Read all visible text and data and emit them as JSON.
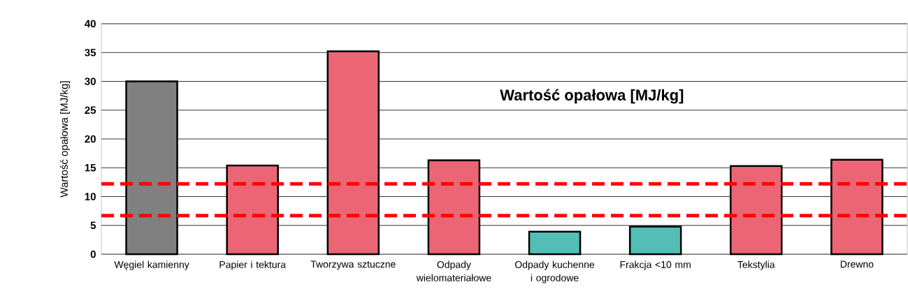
{
  "chart_data": {
    "type": "bar",
    "title": "Wartość opałowa [MJ/kg]",
    "ylabel": "Wartość opałowa [MJ/kg]",
    "categories": [
      "Węgiel kamienny",
      "Papier i tektura",
      "Tworzywa sztuczne",
      "Odpady wielomateriałowe",
      "Odpady kuchenne i ogrodowe",
      "Frakcja <10 mm",
      "Tekstylia",
      "Drewno"
    ],
    "values": [
      30,
      15.4,
      35.2,
      16.3,
      3.9,
      4.8,
      15.3,
      16.4
    ],
    "colors": [
      "#808080",
      "#ec6574",
      "#ec6574",
      "#ec6574",
      "#52beb6",
      "#52beb6",
      "#ec6574",
      "#ec6574"
    ],
    "ylim": [
      0,
      40
    ],
    "yticks": [
      0,
      5,
      10,
      15,
      20,
      25,
      30,
      35,
      40
    ],
    "grid": "y",
    "ref_lines": [
      {
        "axis": "y",
        "value": 12.2,
        "color": "#ff0000",
        "line_style": "dashed"
      },
      {
        "axis": "y",
        "value": 6.7,
        "color": "#ff0000",
        "line_style": "dashed"
      }
    ]
  }
}
